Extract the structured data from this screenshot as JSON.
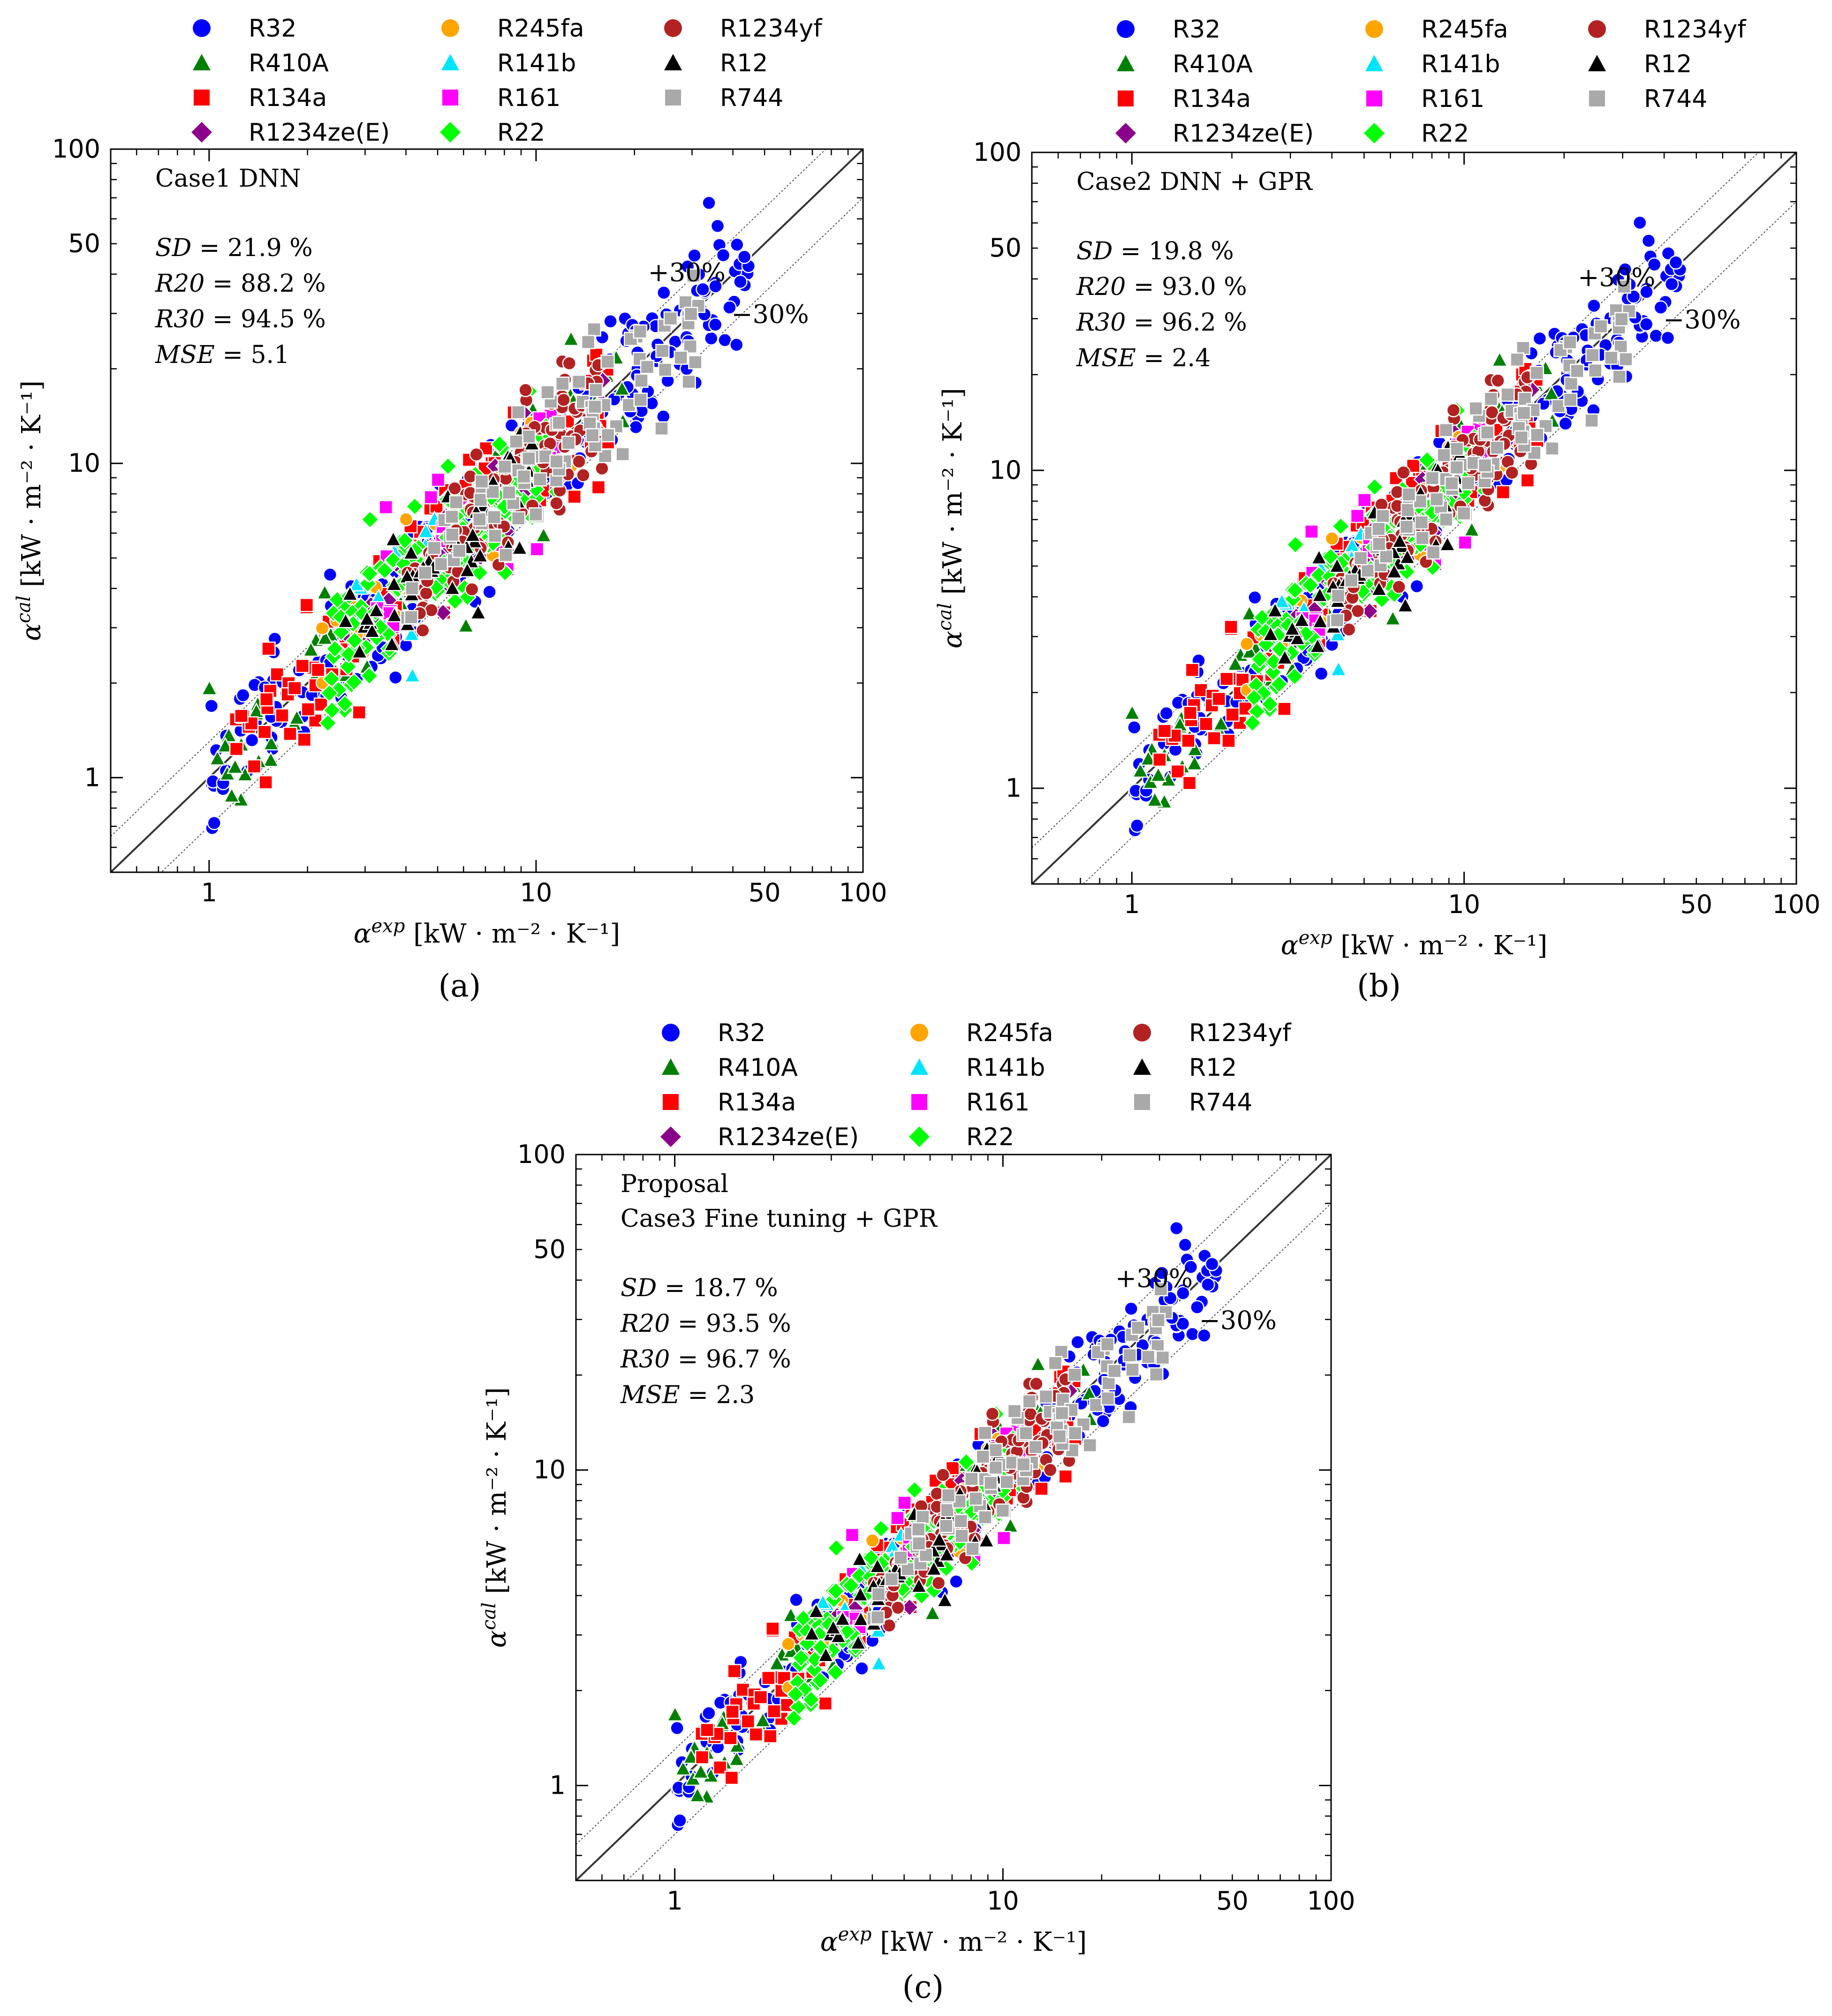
{
  "legend": [
    {
      "name": "R32",
      "marker": "circle",
      "color": "#0000ff"
    },
    {
      "name": "R410A",
      "marker": "triangle",
      "color": "#008000"
    },
    {
      "name": "R134a",
      "marker": "square",
      "color": "#ff0000"
    },
    {
      "name": "R1234ze(E)",
      "marker": "diamond",
      "color": "#8b008b"
    },
    {
      "name": "R245fa",
      "marker": "circle",
      "color": "#ffa500"
    },
    {
      "name": "R141b",
      "marker": "triangle",
      "color": "#00e5ff"
    },
    {
      "name": "R161",
      "marker": "square",
      "color": "#ff00ff"
    },
    {
      "name": "R22",
      "marker": "diamond",
      "color": "#00ff00"
    },
    {
      "name": "R1234yf",
      "marker": "circle",
      "color": "#b22222"
    },
    {
      "name": "R12",
      "marker": "triangle",
      "color": "#000000"
    },
    {
      "name": "R744",
      "marker": "square",
      "color": "#a9a9a9"
    }
  ],
  "axes": {
    "xlabel_symbol": "α",
    "xlabel_sup": "exp",
    "ylabel_symbol": "α",
    "ylabel_sup": "cal",
    "unit": "[kW · m⁻² · K⁻¹]",
    "x_ticks": [
      "1",
      "10",
      "50",
      "100"
    ],
    "y_ticks": [
      "1",
      "10",
      "50",
      "100"
    ],
    "x_tick_values": [
      1,
      10,
      50,
      100
    ],
    "y_tick_values": [
      1,
      10,
      50,
      100
    ],
    "xlim": [
      0.5,
      100
    ],
    "ylim": [
      0.5,
      100
    ],
    "scale": "log",
    "band_plus": "+30%",
    "band_minus": "−30%"
  },
  "chart_data": [
    {
      "type": "scatter",
      "panel_label": "(a)",
      "title_lines": [
        "Case1 DNN"
      ],
      "stats": [
        {
          "name": "SD",
          "value": "21.9 %"
        },
        {
          "name": "R20",
          "value": "88.2 %"
        },
        {
          "name": "R30",
          "value": "94.5 %"
        },
        {
          "name": "MSE",
          "value": "5.1"
        }
      ],
      "spread": 0.24
    },
    {
      "type": "scatter",
      "panel_label": "(b)",
      "title_lines": [
        "Case2 DNN + GPR"
      ],
      "stats": [
        {
          "name": "SD",
          "value": "19.8 %"
        },
        {
          "name": "R20",
          "value": "93.0 %"
        },
        {
          "name": "R30",
          "value": "96.2 %"
        },
        {
          "name": "MSE",
          "value": "2.4"
        }
      ],
      "spread": 0.2
    },
    {
      "type": "scatter",
      "panel_label": "(c)",
      "title_lines": [
        "Proposal",
        "Case3 Fine tuning + GPR"
      ],
      "stats": [
        {
          "name": "SD",
          "value": "18.7 %"
        },
        {
          "name": "R20",
          "value": "93.5 %"
        },
        {
          "name": "R30",
          "value": "96.7 %"
        },
        {
          "name": "MSE",
          "value": "2.3"
        }
      ],
      "spread": 0.19
    }
  ]
}
